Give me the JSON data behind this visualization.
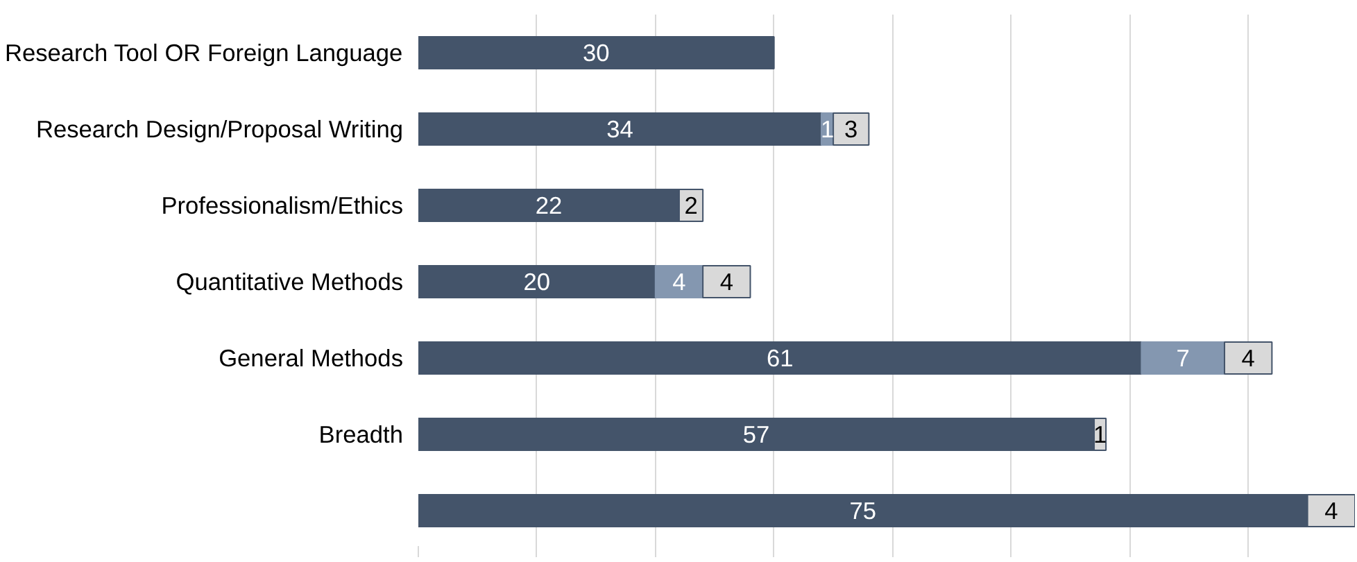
{
  "chart_data": {
    "type": "bar",
    "orientation": "horizontal",
    "stacked": true,
    "data_labels": true,
    "grid": "x",
    "tick_labels": "y",
    "categories": [
      "Research Tool OR Foreign Language",
      "Research Design/Proposal Writing",
      "Professionalism/Ethics",
      "Quantitative Methods",
      "General Methods",
      "Breadth",
      null
    ],
    "xlim": [
      0,
      79
    ],
    "xticks": [
      0,
      10,
      20,
      30,
      40,
      50,
      60,
      70
    ],
    "series": [
      {
        "color": "#44546a",
        "values": [
          30,
          34,
          22,
          20,
          61,
          57,
          75
        ]
      },
      {
        "color": "#8497b0",
        "values": [
          null,
          1,
          null,
          4,
          7,
          null,
          null
        ]
      },
      {
        "color": "#d9d9d9",
        "values": [
          null,
          3,
          2,
          4,
          4,
          1,
          4
        ]
      }
    ]
  }
}
